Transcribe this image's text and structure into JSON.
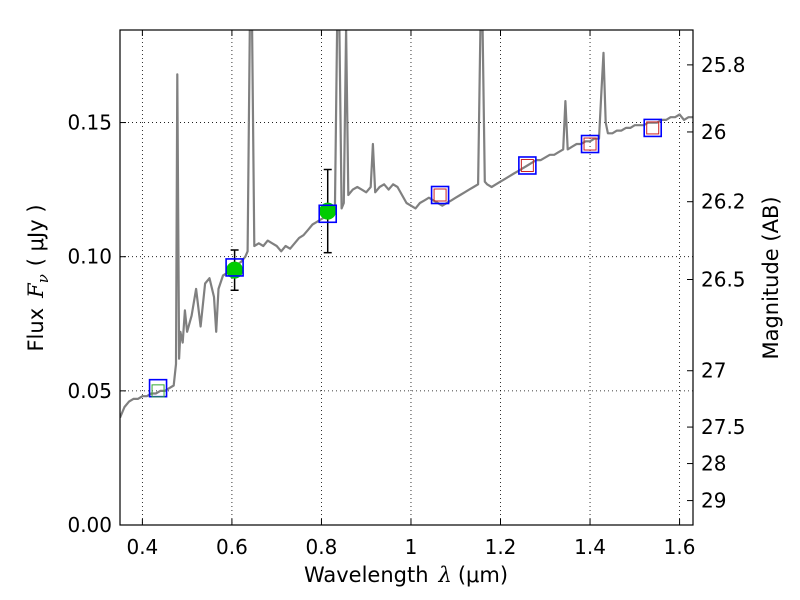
{
  "chart_data": {
    "type": "scatter",
    "xlabel": "Wavelength",
    "xlabel_math": "λ",
    "xlabel_unit": "(μm)",
    "ylabel": "Flux",
    "ylabel_math": "F",
    "ylabel_math_sub": "ν",
    "ylabel_unit": "( μJy )",
    "ylabel_right": "Magnitude (AB)",
    "xlim": [
      0.35,
      1.63
    ],
    "ylim": [
      0.0,
      0.1845
    ],
    "grid": true,
    "x_ticks": [
      0.4,
      0.6,
      0.8,
      1.0,
      1.2,
      1.4,
      1.6
    ],
    "x_tick_labels": [
      "0.4",
      "0.6",
      "0.8",
      "1",
      "1.2",
      "1.4",
      "1.6"
    ],
    "y_ticks": [
      0.0,
      0.05,
      0.1,
      0.15
    ],
    "y_tick_labels": [
      "0.00",
      "0.05",
      "0.10",
      "0.15"
    ],
    "right_ticks": [
      {
        "label": "25.8",
        "flux": 0.1715
      },
      {
        "label": "26",
        "flux": 0.1465
      },
      {
        "label": "26.2",
        "flux": 0.1205
      },
      {
        "label": "26.5",
        "flux": 0.0915
      },
      {
        "label": "27",
        "flux": 0.0575
      },
      {
        "label": "27.5",
        "flux": 0.0365
      },
      {
        "label": "28",
        "flux": 0.0229
      },
      {
        "label": "29",
        "flux": 0.0091
      }
    ],
    "series": [
      {
        "kind": "spectrum",
        "color": "#808080",
        "points": [
          [
            0.35,
            0.04
          ],
          [
            0.36,
            0.044
          ],
          [
            0.37,
            0.046
          ],
          [
            0.38,
            0.047
          ],
          [
            0.39,
            0.047
          ],
          [
            0.4,
            0.048
          ],
          [
            0.41,
            0.048
          ],
          [
            0.42,
            0.049
          ],
          [
            0.43,
            0.049
          ],
          [
            0.44,
            0.05
          ],
          [
            0.45,
            0.05
          ],
          [
            0.46,
            0.051
          ],
          [
            0.47,
            0.052
          ],
          [
            0.475,
            0.06
          ],
          [
            0.478,
            0.168
          ],
          [
            0.482,
            0.062
          ],
          [
            0.485,
            0.072
          ],
          [
            0.49,
            0.068
          ],
          [
            0.495,
            0.08
          ],
          [
            0.5,
            0.072
          ],
          [
            0.51,
            0.078
          ],
          [
            0.52,
            0.088
          ],
          [
            0.53,
            0.074
          ],
          [
            0.54,
            0.09
          ],
          [
            0.55,
            0.092
          ],
          [
            0.56,
            0.085
          ],
          [
            0.565,
            0.072
          ],
          [
            0.57,
            0.088
          ],
          [
            0.58,
            0.093
          ],
          [
            0.59,
            0.094
          ],
          [
            0.6,
            0.096
          ],
          [
            0.61,
            0.097
          ],
          [
            0.62,
            0.098
          ],
          [
            0.63,
            0.1
          ],
          [
            0.635,
            0.102
          ],
          [
            0.64,
            0.185
          ],
          [
            0.645,
            0.185
          ],
          [
            0.65,
            0.104
          ],
          [
            0.66,
            0.105
          ],
          [
            0.67,
            0.104
          ],
          [
            0.68,
            0.106
          ],
          [
            0.69,
            0.105
          ],
          [
            0.7,
            0.104
          ],
          [
            0.71,
            0.102
          ],
          [
            0.72,
            0.104
          ],
          [
            0.73,
            0.103
          ],
          [
            0.74,
            0.105
          ],
          [
            0.75,
            0.107
          ],
          [
            0.76,
            0.108
          ],
          [
            0.77,
            0.11
          ],
          [
            0.78,
            0.112
          ],
          [
            0.79,
            0.113
          ],
          [
            0.8,
            0.114
          ],
          [
            0.81,
            0.115
          ],
          [
            0.82,
            0.116
          ],
          [
            0.83,
            0.117
          ],
          [
            0.835,
            0.185
          ],
          [
            0.84,
            0.185
          ],
          [
            0.845,
            0.118
          ],
          [
            0.85,
            0.12
          ],
          [
            0.855,
            0.185
          ],
          [
            0.86,
            0.123
          ],
          [
            0.87,
            0.125
          ],
          [
            0.88,
            0.126
          ],
          [
            0.89,
            0.125
          ],
          [
            0.9,
            0.124
          ],
          [
            0.91,
            0.126
          ],
          [
            0.915,
            0.142
          ],
          [
            0.92,
            0.124
          ],
          [
            0.93,
            0.126
          ],
          [
            0.94,
            0.127
          ],
          [
            0.95,
            0.125
          ],
          [
            0.96,
            0.127
          ],
          [
            0.97,
            0.126
          ],
          [
            0.98,
            0.123
          ],
          [
            0.99,
            0.12
          ],
          [
            1.0,
            0.119
          ],
          [
            1.01,
            0.118
          ],
          [
            1.02,
            0.12
          ],
          [
            1.03,
            0.121
          ],
          [
            1.04,
            0.122
          ],
          [
            1.05,
            0.121
          ],
          [
            1.06,
            0.12
          ],
          [
            1.07,
            0.119
          ],
          [
            1.08,
            0.12
          ],
          [
            1.09,
            0.121
          ],
          [
            1.1,
            0.122
          ],
          [
            1.11,
            0.123
          ],
          [
            1.12,
            0.124
          ],
          [
            1.13,
            0.125
          ],
          [
            1.14,
            0.126
          ],
          [
            1.15,
            0.127
          ],
          [
            1.155,
            0.185
          ],
          [
            1.16,
            0.185
          ],
          [
            1.165,
            0.128
          ],
          [
            1.17,
            0.127
          ],
          [
            1.18,
            0.126
          ],
          [
            1.19,
            0.127
          ],
          [
            1.2,
            0.128
          ],
          [
            1.21,
            0.129
          ],
          [
            1.22,
            0.13
          ],
          [
            1.23,
            0.131
          ],
          [
            1.24,
            0.132
          ],
          [
            1.25,
            0.133
          ],
          [
            1.26,
            0.134
          ],
          [
            1.27,
            0.135
          ],
          [
            1.28,
            0.136
          ],
          [
            1.29,
            0.136
          ],
          [
            1.3,
            0.137
          ],
          [
            1.31,
            0.138
          ],
          [
            1.32,
            0.138
          ],
          [
            1.33,
            0.139
          ],
          [
            1.34,
            0.14
          ],
          [
            1.345,
            0.158
          ],
          [
            1.35,
            0.14
          ],
          [
            1.36,
            0.141
          ],
          [
            1.37,
            0.142
          ],
          [
            1.38,
            0.142
          ],
          [
            1.39,
            0.143
          ],
          [
            1.4,
            0.143
          ],
          [
            1.41,
            0.144
          ],
          [
            1.42,
            0.144
          ],
          [
            1.425,
            0.16
          ],
          [
            1.43,
            0.176
          ],
          [
            1.435,
            0.15
          ],
          [
            1.44,
            0.146
          ],
          [
            1.45,
            0.146
          ],
          [
            1.46,
            0.147
          ],
          [
            1.47,
            0.147
          ],
          [
            1.48,
            0.148
          ],
          [
            1.49,
            0.148
          ],
          [
            1.5,
            0.149
          ],
          [
            1.51,
            0.149
          ],
          [
            1.52,
            0.149
          ],
          [
            1.53,
            0.15
          ],
          [
            1.54,
            0.15
          ],
          [
            1.55,
            0.15
          ],
          [
            1.56,
            0.151
          ],
          [
            1.57,
            0.151
          ],
          [
            1.58,
            0.152
          ],
          [
            1.59,
            0.152
          ],
          [
            1.6,
            0.153
          ],
          [
            1.61,
            0.151
          ],
          [
            1.62,
            0.152
          ],
          [
            1.63,
            0.152
          ]
        ]
      },
      {
        "kind": "observed",
        "color": "#00cc00",
        "points": [
          {
            "x": 0.606,
            "y": 0.095,
            "yerr": 0.0075
          },
          {
            "x": 0.814,
            "y": 0.117,
            "yerr": 0.0155
          }
        ]
      },
      {
        "kind": "model_box",
        "color": "#0000ff",
        "points": [
          {
            "x": 0.435,
            "y": 0.051
          },
          {
            "x": 0.606,
            "y": 0.096
          },
          {
            "x": 0.814,
            "y": 0.116
          },
          {
            "x": 1.065,
            "y": 0.123
          },
          {
            "x": 1.26,
            "y": 0.134
          },
          {
            "x": 1.4,
            "y": 0.142
          },
          {
            "x": 1.54,
            "y": 0.148
          }
        ]
      },
      {
        "kind": "model_inner",
        "color": "#cc2222",
        "points": [
          {
            "x": 1.065,
            "y": 0.123
          },
          {
            "x": 1.26,
            "y": 0.134
          },
          {
            "x": 1.4,
            "y": 0.142
          },
          {
            "x": 1.54,
            "y": 0.148
          }
        ]
      },
      {
        "kind": "model_inner",
        "color": "#33aa33",
        "points": [
          {
            "x": 0.435,
            "y": 0.05
          }
        ]
      }
    ]
  }
}
